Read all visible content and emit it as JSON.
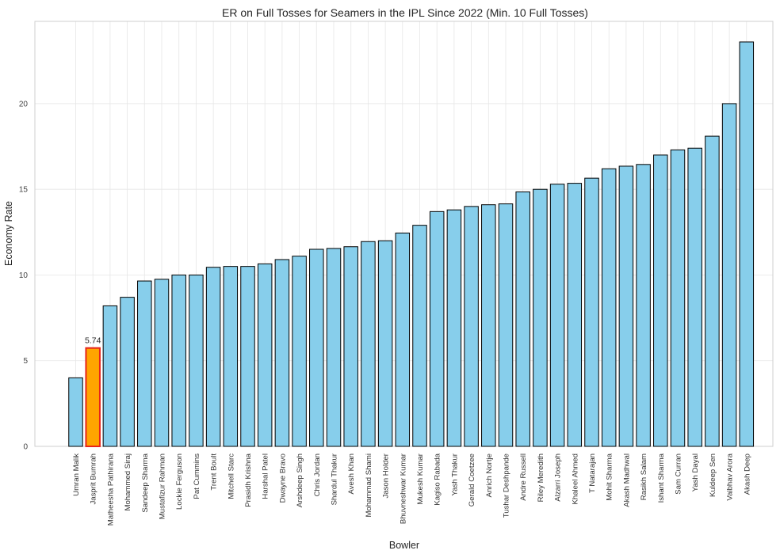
{
  "chart_data": {
    "type": "bar",
    "title": "ER on Full Tosses for Seamers in the IPL Since 2022 (Min. 10 Full Tosses)",
    "xlabel": "Bowler",
    "ylabel": "Economy Rate",
    "ylim": [
      0,
      24.8
    ],
    "yticks": [
      0,
      5,
      10,
      15,
      20
    ],
    "grid": true,
    "colors": {
      "default": "#87ceeb",
      "highlight": "#ffa500",
      "highlight_edge": "#e8251a",
      "edge": "#000000"
    },
    "highlight_label": "5.74",
    "categories": [
      "Umran Malik",
      "Jasprit Bumrah",
      "Matheesha Pathirana",
      "Mohammed Siraj",
      "Sandeep Sharma",
      "Mustafizur Rahman",
      "Lockie Ferguson",
      "Pat Cummins",
      "Trent Boult",
      "Mitchell Starc",
      "Prasidh Krishna",
      "Harshal Patel",
      "Dwayne Bravo",
      "Arshdeep Singh",
      "Chris Jordan",
      "Shardul Thakur",
      "Avesh Khan",
      "Mohammad Shami",
      "Jason Holder",
      "Bhuvneshwar Kumar",
      "Mukesh Kumar",
      "Kagiso Rabada",
      "Yash Thakur",
      "Gerald Coetzee",
      "Anrich Nortje",
      "Tushar Deshpande",
      "Andre Russell",
      "Riley Meredith",
      "Alzarri Joseph",
      "Khaleel Ahmed",
      "T Natarajan",
      "Mohit Sharma",
      "Akash Madhwal",
      "Rasikh Salam",
      "Ishant Sharma",
      "Sam Curran",
      "Yash Dayal",
      "Kuldeep Sen",
      "Vaibhav Arora",
      "Akash Deep"
    ],
    "values": [
      4.0,
      5.74,
      8.2,
      8.7,
      9.65,
      9.75,
      10.0,
      10.0,
      10.45,
      10.5,
      10.5,
      10.65,
      10.9,
      11.1,
      11.5,
      11.55,
      11.65,
      11.95,
      12.0,
      12.45,
      12.9,
      13.7,
      13.8,
      14.0,
      14.1,
      14.15,
      14.85,
      15.0,
      15.3,
      15.35,
      15.65,
      16.2,
      16.35,
      16.45,
      17.0,
      17.3,
      17.4,
      18.1,
      20.0,
      23.6
    ],
    "highlight_index": 1
  }
}
